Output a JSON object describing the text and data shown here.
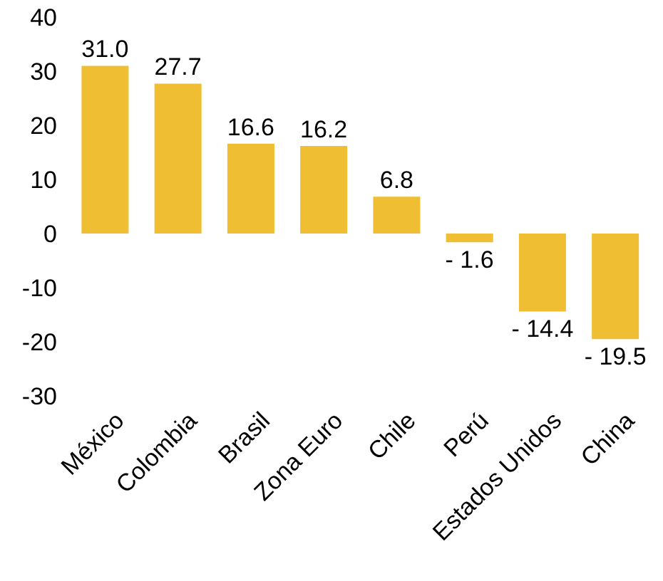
{
  "chart_data": {
    "type": "bar",
    "categories": [
      "México",
      "Colombia",
      "Brasil",
      "Zona Euro",
      "Chile",
      "Perú",
      "Estados Unidos",
      "China"
    ],
    "values": [
      31.0,
      27.7,
      16.6,
      16.2,
      6.8,
      -1.6,
      -14.4,
      -19.5
    ],
    "value_labels": [
      "31.0",
      "27.7",
      "16.6",
      "16.2",
      "6.8",
      "- 1.6",
      "- 14.4",
      "- 19.5"
    ],
    "color": "#f0be32",
    "ylim": [
      -30,
      40
    ],
    "yticks": [
      -30,
      -20,
      -10,
      0,
      10,
      20,
      30,
      40
    ],
    "grid": false,
    "legend": false
  }
}
